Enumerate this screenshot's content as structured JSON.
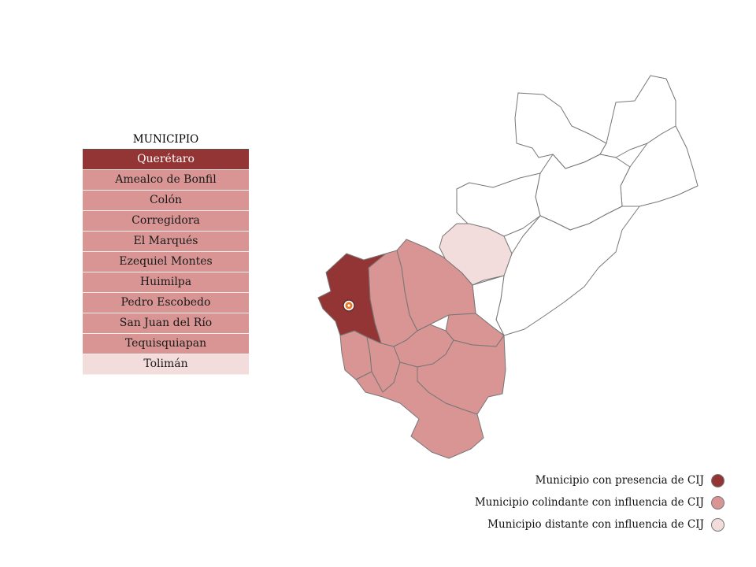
{
  "table": {
    "header": "MUNICIPIO",
    "rows": [
      {
        "name": "Querétaro",
        "category": "presence"
      },
      {
        "name": "Amealco de Bonfil",
        "category": "neighbor"
      },
      {
        "name": "Colón",
        "category": "neighbor"
      },
      {
        "name": "Corregidora",
        "category": "neighbor"
      },
      {
        "name": "El Marqués",
        "category": "neighbor"
      },
      {
        "name": "Ezequiel Montes",
        "category": "neighbor"
      },
      {
        "name": "Huimilpa",
        "category": "neighbor"
      },
      {
        "name": "Pedro Escobedo",
        "category": "neighbor"
      },
      {
        "name": "San Juan del Río",
        "category": "neighbor"
      },
      {
        "name": "Tequisquiapan",
        "category": "neighbor"
      },
      {
        "name": "Tolimán",
        "category": "distant"
      }
    ]
  },
  "legend": {
    "presence": "Municipio con presencia de CIJ",
    "neighbor": "Municipio colindante con influencia de CIJ",
    "distant": "Municipio distante con influencia de CIJ"
  },
  "colors": {
    "presence": "#943535",
    "neighbor": "#d99494",
    "distant": "#f2dcdc",
    "none": "#ffffff",
    "border": "#777777"
  },
  "marker": {
    "icon": "cij-location-icon"
  }
}
